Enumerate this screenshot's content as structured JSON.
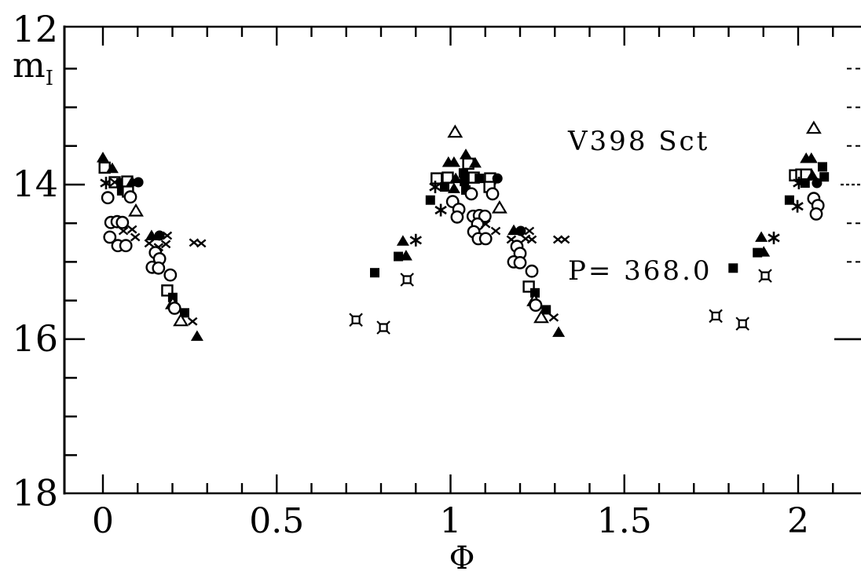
{
  "figure": {
    "background": "#ffffff",
    "ink_color": "#000000",
    "star_name": "V398 Sct",
    "period_text": "P= 368.0",
    "y_axis_label_main": "m",
    "y_axis_label_sub": "I",
    "x_axis_label": "Φ"
  },
  "chart_data": {
    "type": "scatter",
    "title": "V398 Sct",
    "subtitle": "P= 368.0",
    "xlabel": "Φ",
    "ylabel": "mI",
    "grid": false,
    "legend": "none",
    "x_axis": {
      "min": -0.11,
      "max": 2.18,
      "major_ticks": [
        0,
        0.5,
        1,
        1.5,
        2
      ],
      "major_tick_labels": [
        "0",
        "0.5",
        "1",
        "1.5",
        "2"
      ],
      "minor_tick_step": 0.1
    },
    "y_axis": {
      "min": 12,
      "max": 18,
      "inverted": true,
      "major_ticks": [
        12,
        14,
        16,
        18
      ],
      "major_tick_labels": [
        "12",
        "14",
        "16",
        "18"
      ],
      "minor_tick_step": 0.5
    },
    "right_edge_tick_mags": [
      12.5,
      13,
      13.5,
      14,
      14.5,
      15,
      16
    ],
    "marker_types": {
      "ft": "filled-triangle",
      "ot": "open-triangle",
      "fs": "filled-square",
      "os": "open-square",
      "fc": "filled-circle",
      "oc": "open-circle",
      "x": "cross",
      "ast": "asterisk",
      "sq4": "four-spiked-square"
    },
    "series": [
      {
        "name": "I-band observations (phase, magnitude, marker)",
        "points": [
          [
            0.0,
            13.65,
            "ft"
          ],
          [
            0.005,
            13.78,
            "os"
          ],
          [
            0.027,
            13.79,
            "ft"
          ],
          [
            0.009,
            13.98,
            "ast"
          ],
          [
            0.034,
            13.97,
            "os"
          ],
          [
            0.034,
            13.97,
            "x"
          ],
          [
            0.052,
            13.98,
            "fs"
          ],
          [
            0.07,
            13.96,
            "os"
          ],
          [
            0.084,
            13.96,
            "ft"
          ],
          [
            0.102,
            13.97,
            "fc"
          ],
          [
            0.054,
            14.08,
            "fs"
          ],
          [
            0.072,
            14.09,
            "os"
          ],
          [
            0.079,
            14.16,
            "oc"
          ],
          [
            0.014,
            14.17,
            "oc"
          ],
          [
            0.095,
            14.34,
            "ot"
          ],
          [
            0.023,
            14.49,
            "oc"
          ],
          [
            0.041,
            14.48,
            "oc"
          ],
          [
            0.056,
            14.49,
            "oc"
          ],
          [
            0.059,
            14.6,
            "x"
          ],
          [
            0.084,
            14.58,
            "x"
          ],
          [
            0.02,
            14.68,
            "oc"
          ],
          [
            0.093,
            14.68,
            "x"
          ],
          [
            0.043,
            14.79,
            "oc"
          ],
          [
            0.066,
            14.79,
            "oc"
          ],
          [
            0.14,
            14.66,
            "ft"
          ],
          [
            0.163,
            14.66,
            "fc"
          ],
          [
            0.185,
            14.66,
            "x"
          ],
          [
            0.133,
            14.76,
            "x"
          ],
          [
            0.16,
            14.81,
            "x"
          ],
          [
            0.181,
            14.77,
            "x"
          ],
          [
            0.262,
            14.75,
            "x"
          ],
          [
            0.283,
            14.76,
            "x"
          ],
          [
            0.151,
            14.88,
            "oc"
          ],
          [
            0.163,
            14.96,
            "oc"
          ],
          [
            0.142,
            15.07,
            "oc"
          ],
          [
            0.16,
            15.08,
            "oc"
          ],
          [
            0.194,
            15.17,
            "oc"
          ],
          [
            0.185,
            15.37,
            "os"
          ],
          [
            0.201,
            15.46,
            "fs"
          ],
          [
            0.201,
            15.54,
            "ot"
          ],
          [
            0.206,
            15.6,
            "oc"
          ],
          [
            0.235,
            15.66,
            "fs"
          ],
          [
            0.224,
            15.76,
            "ot"
          ],
          [
            0.258,
            15.77,
            "x"
          ],
          [
            0.271,
            15.96,
            "ft"
          ],
          [
            0.728,
            15.75,
            "sq4"
          ],
          [
            0.782,
            15.14,
            "fs"
          ],
          [
            0.807,
            15.85,
            "sq4"
          ],
          [
            0.85,
            14.93,
            "fs"
          ],
          [
            0.863,
            14.73,
            "ft"
          ],
          [
            0.872,
            14.92,
            "ft"
          ],
          [
            0.875,
            15.23,
            "sq4"
          ],
          [
            0.9,
            14.72,
            "ast"
          ],
          [
            1.013,
            13.32,
            "ot"
          ],
          [
            1.044,
            13.61,
            "ft"
          ],
          [
            0.994,
            13.71,
            "ft"
          ],
          [
            1.01,
            13.71,
            "ft"
          ],
          [
            1.051,
            13.73,
            "os"
          ],
          [
            1.071,
            13.72,
            "ft"
          ],
          [
            0.96,
            13.92,
            "os"
          ],
          [
            0.992,
            13.91,
            "os"
          ],
          [
            1.015,
            13.92,
            "ft"
          ],
          [
            1.037,
            13.85,
            "fs"
          ],
          [
            1.04,
            13.96,
            "fs"
          ],
          [
            1.067,
            13.91,
            "os"
          ],
          [
            1.083,
            13.92,
            "fs"
          ],
          [
            1.114,
            13.92,
            "os"
          ],
          [
            1.135,
            13.92,
            "fc"
          ],
          [
            0.956,
            14.03,
            "ast"
          ],
          [
            0.983,
            14.03,
            "fs"
          ],
          [
            1.01,
            14.05,
            "ft"
          ],
          [
            1.044,
            14.07,
            "fs"
          ],
          [
            1.112,
            14.03,
            "os"
          ],
          [
            1.06,
            14.12,
            "oc"
          ],
          [
            1.121,
            14.12,
            "oc"
          ],
          [
            0.942,
            14.2,
            "fs"
          ],
          [
            0.972,
            14.33,
            "ast"
          ],
          [
            1.006,
            14.22,
            "oc"
          ],
          [
            1.024,
            14.32,
            "oc"
          ],
          [
            1.019,
            14.42,
            "oc"
          ],
          [
            1.141,
            14.3,
            "ot"
          ],
          [
            1.065,
            14.41,
            "oc"
          ],
          [
            1.083,
            14.4,
            "oc"
          ],
          [
            1.099,
            14.41,
            "oc"
          ],
          [
            1.078,
            14.51,
            "oc"
          ],
          [
            1.101,
            14.51,
            "x"
          ],
          [
            1.067,
            14.61,
            "oc"
          ],
          [
            1.13,
            14.6,
            "x"
          ],
          [
            1.08,
            14.7,
            "oc"
          ],
          [
            1.101,
            14.7,
            "oc"
          ],
          [
            1.182,
            14.59,
            "ft"
          ],
          [
            1.202,
            14.6,
            "fc"
          ],
          [
            1.227,
            14.6,
            "x"
          ],
          [
            1.175,
            14.71,
            "x"
          ],
          [
            1.216,
            14.7,
            "x"
          ],
          [
            1.234,
            14.71,
            "x"
          ],
          [
            1.309,
            14.71,
            "x"
          ],
          [
            1.329,
            14.71,
            "x"
          ],
          [
            1.191,
            14.8,
            "oc"
          ],
          [
            1.2,
            14.89,
            "oc"
          ],
          [
            1.182,
            15.0,
            "oc"
          ],
          [
            1.2,
            15.01,
            "oc"
          ],
          [
            1.234,
            15.12,
            "oc"
          ],
          [
            1.225,
            15.32,
            "os"
          ],
          [
            1.243,
            15.4,
            "fs"
          ],
          [
            1.241,
            15.5,
            "ot"
          ],
          [
            1.245,
            15.56,
            "oc"
          ],
          [
            1.275,
            15.62,
            "fs"
          ],
          [
            1.261,
            15.72,
            "ot"
          ],
          [
            1.297,
            15.72,
            "x"
          ],
          [
            1.311,
            15.91,
            "ft"
          ],
          [
            1.763,
            15.7,
            "sq4"
          ],
          [
            1.813,
            15.08,
            "fs"
          ],
          [
            1.84,
            15.8,
            "sq4"
          ],
          [
            1.883,
            14.88,
            "fs"
          ],
          [
            1.894,
            14.68,
            "ft"
          ],
          [
            1.901,
            14.87,
            "ft"
          ],
          [
            1.905,
            15.18,
            "sq4"
          ],
          [
            1.93,
            14.69,
            "ast"
          ],
          [
            2.045,
            13.27,
            "ot"
          ],
          [
            2.023,
            13.66,
            "ft"
          ],
          [
            2.038,
            13.66,
            "ft"
          ],
          [
            2.07,
            13.77,
            "fs"
          ],
          [
            2.075,
            13.9,
            "fs"
          ],
          [
            1.991,
            13.88,
            "os"
          ],
          [
            2.009,
            13.87,
            "os"
          ],
          [
            2.023,
            13.87,
            "os"
          ],
          [
            2.041,
            13.88,
            "ft"
          ],
          [
            2.002,
            13.98,
            "ast"
          ],
          [
            2.02,
            13.98,
            "fs"
          ],
          [
            2.054,
            13.98,
            "fc"
          ],
          [
            1.975,
            14.2,
            "fs"
          ],
          [
            1.998,
            14.28,
            "ast"
          ],
          [
            2.045,
            14.18,
            "oc"
          ],
          [
            2.057,
            14.27,
            "oc"
          ],
          [
            2.052,
            14.38,
            "oc"
          ]
        ]
      }
    ]
  }
}
